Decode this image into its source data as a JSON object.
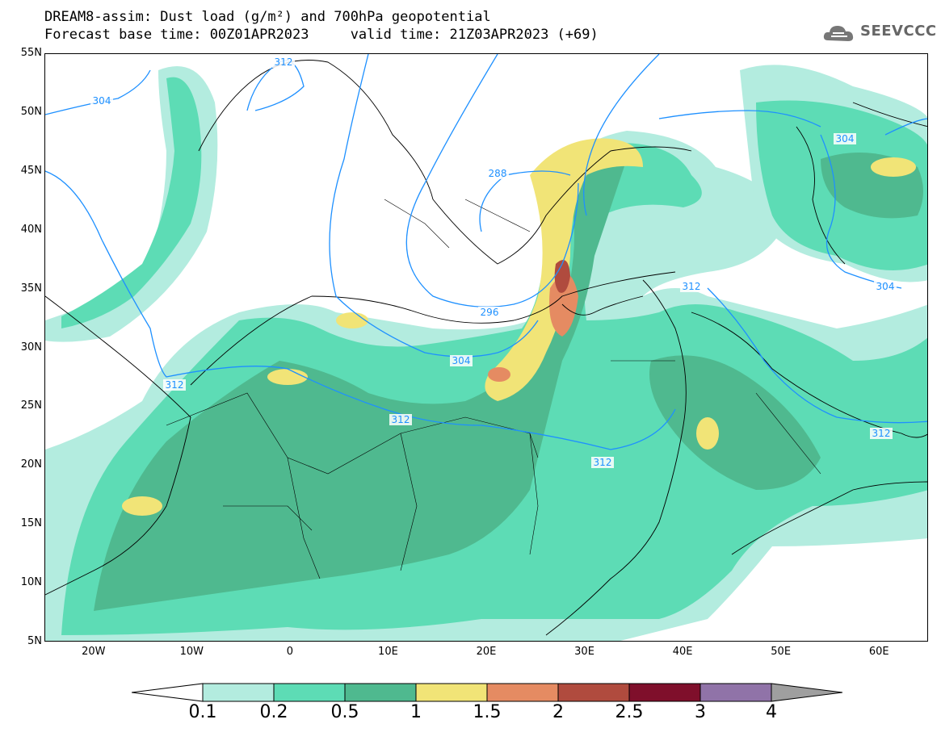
{
  "title": {
    "line1": "DREAM8-assim: Dust load (g/m²) and 700hPa geopotential",
    "line2": "Forecast base time: 00Z01APR2023     valid time: 21Z03APR2023 (+69)"
  },
  "logo": {
    "text": "SEEVCCC",
    "icon": "cloud-icon"
  },
  "map": {
    "lon_range": [
      -25,
      65
    ],
    "lat_range": [
      5,
      55
    ],
    "lat_labels": [
      "55N",
      "50N",
      "45N",
      "40N",
      "35N",
      "30N",
      "25N",
      "20N",
      "15N",
      "10N",
      "5N"
    ],
    "lon_labels": [
      "20W",
      "10W",
      "0",
      "10E",
      "20E",
      "30E",
      "40E",
      "50E",
      "60E"
    ],
    "contour_labels": [
      "304",
      "312",
      "288",
      "296",
      "304",
      "312",
      "312",
      "312",
      "304",
      "312",
      "304",
      "312"
    ]
  },
  "legend": {
    "levels": [
      "0.1",
      "0.2",
      "0.5",
      "1",
      "1.5",
      "2",
      "2.5",
      "3",
      "4"
    ],
    "colors": [
      "#ffffff",
      "#b3ecdf",
      "#5ddcb5",
      "#4fb98f",
      "#f1e477",
      "#e58b62",
      "#b04b3e",
      "#7f0f2b",
      "#9073a8",
      "#9f9f9f"
    ]
  },
  "colors": {
    "contour": "#1e90ff",
    "dust_low": "#b3ecdf",
    "dust_mid": "#5ddcb5",
    "dust_high": "#4fb98f",
    "dust_yellow": "#f1e477",
    "dust_orange": "#e58b62",
    "dust_red": "#b04b3e"
  }
}
